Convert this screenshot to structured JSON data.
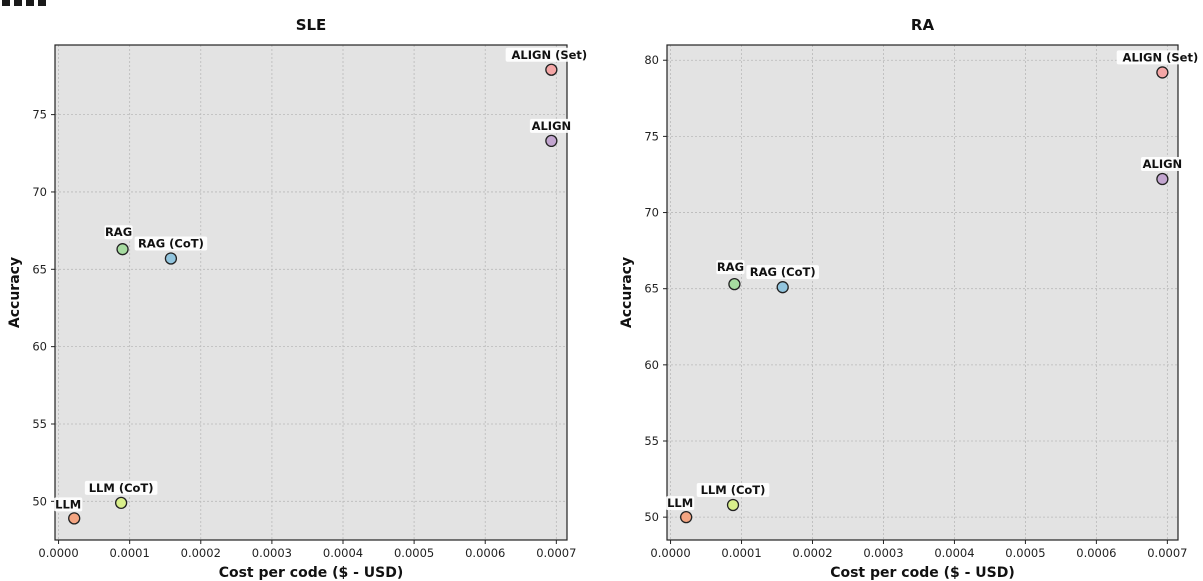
{
  "chart_data": [
    {
      "type": "scatter",
      "title": "SLE",
      "xlabel": "Cost per code ($ - USD)",
      "ylabel": "Accuracy",
      "xlim": [
        -5e-06,
        0.000715
      ],
      "ylim": [
        47.5,
        79.5
      ],
      "xticks": [
        "0.0000",
        "0.0001",
        "0.0002",
        "0.0003",
        "0.0004",
        "0.0005",
        "0.0006",
        "0.0007"
      ],
      "yticks": [
        "50",
        "55",
        "60",
        "65",
        "70",
        "75"
      ],
      "grid": true,
      "points": [
        {
          "label": "LLM",
          "x": 2.2e-05,
          "y": 48.9,
          "color": "#f4a582"
        },
        {
          "label": "LLM (CoT)",
          "x": 8.8e-05,
          "y": 49.9,
          "color": "#d9ef8b"
        },
        {
          "label": "RAG",
          "x": 9e-05,
          "y": 66.3,
          "color": "#a6dba0"
        },
        {
          "label": "RAG (CoT)",
          "x": 0.000158,
          "y": 65.7,
          "color": "#92c5de"
        },
        {
          "label": "ALIGN",
          "x": 0.000693,
          "y": 73.3,
          "color": "#c2a5cf"
        },
        {
          "label": "ALIGN (Set)",
          "x": 0.000693,
          "y": 77.9,
          "color": "#f4a6a6"
        }
      ]
    },
    {
      "type": "scatter",
      "title": "RA",
      "xlabel": "Cost per code ($ - USD)",
      "ylabel": "Accuracy",
      "xlim": [
        -5e-06,
        0.000715
      ],
      "ylim": [
        48.5,
        81
      ],
      "xticks": [
        "0.0000",
        "0.0001",
        "0.0002",
        "0.0003",
        "0.0004",
        "0.0005",
        "0.0006",
        "0.0007"
      ],
      "yticks": [
        "50",
        "55",
        "60",
        "65",
        "70",
        "75",
        "80"
      ],
      "grid": true,
      "points": [
        {
          "label": "LLM",
          "x": 2.2e-05,
          "y": 50.0,
          "color": "#f4a582"
        },
        {
          "label": "LLM (CoT)",
          "x": 8.8e-05,
          "y": 50.8,
          "color": "#d9ef8b"
        },
        {
          "label": "RAG",
          "x": 9e-05,
          "y": 65.3,
          "color": "#a6dba0"
        },
        {
          "label": "RAG (CoT)",
          "x": 0.000158,
          "y": 65.1,
          "color": "#92c5de"
        },
        {
          "label": "ALIGN",
          "x": 0.000693,
          "y": 72.2,
          "color": "#c2a5cf"
        },
        {
          "label": "ALIGN (Set)",
          "x": 0.000693,
          "y": 79.2,
          "color": "#f4a6a6"
        }
      ]
    }
  ]
}
